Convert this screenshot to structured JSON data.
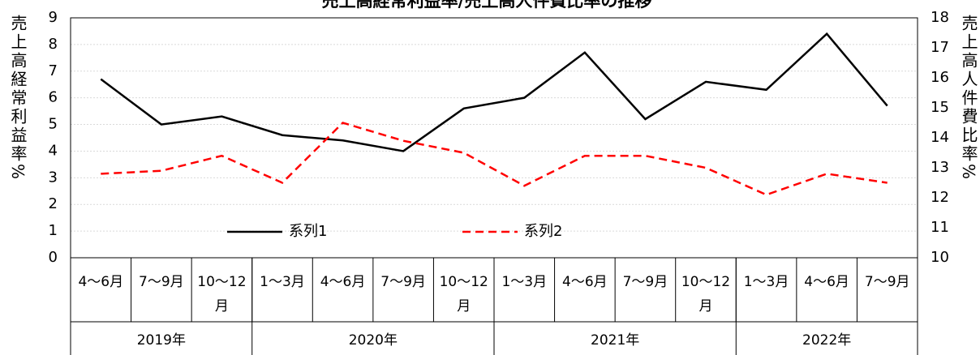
{
  "chart_data": {
    "type": "line",
    "title": "売上高経常利益率/売上高人件費比率の推移",
    "ylabel": "売上高経常利益率%",
    "y2label": "売上高人件費比率%",
    "categories": [
      "4〜6月",
      "7〜9月",
      "10〜12月",
      "1〜3月",
      "4〜6月",
      "7〜9月",
      "10〜12月",
      "1〜3月",
      "4〜6月",
      "7〜9月",
      "10〜12月",
      "1〜3月",
      "4〜6月",
      "7〜9月"
    ],
    "groups": [
      {
        "label": "2019年",
        "span": 3
      },
      {
        "label": "2020年",
        "span": 4
      },
      {
        "label": "2021年",
        "span": 4
      },
      {
        "label": "2022年",
        "span": 3
      }
    ],
    "series": [
      {
        "name": "系列1",
        "color": "#000000",
        "dash": false,
        "values": [
          6.7,
          5.0,
          5.3,
          4.6,
          4.4,
          4.0,
          5.6,
          6.0,
          7.7,
          5.2,
          6.6,
          6.3,
          8.4,
          5.7
        ]
      },
      {
        "name": "系列2",
        "color": "#ff0000",
        "dash": true,
        "axis": "y2",
        "values": [
          12.8,
          12.9,
          13.4,
          12.5,
          14.5,
          13.9,
          13.5,
          12.4,
          13.4,
          13.4,
          13.0,
          12.1,
          12.8,
          12.5
        ]
      }
    ],
    "ylim": [
      0,
      9
    ],
    "yticks": [
      0,
      1,
      2,
      3,
      4,
      5,
      6,
      7,
      8,
      9
    ],
    "y2lim": [
      10,
      18
    ],
    "y2ticks": [
      10,
      11,
      12,
      13,
      14,
      15,
      16,
      17,
      18
    ],
    "grid": true
  }
}
